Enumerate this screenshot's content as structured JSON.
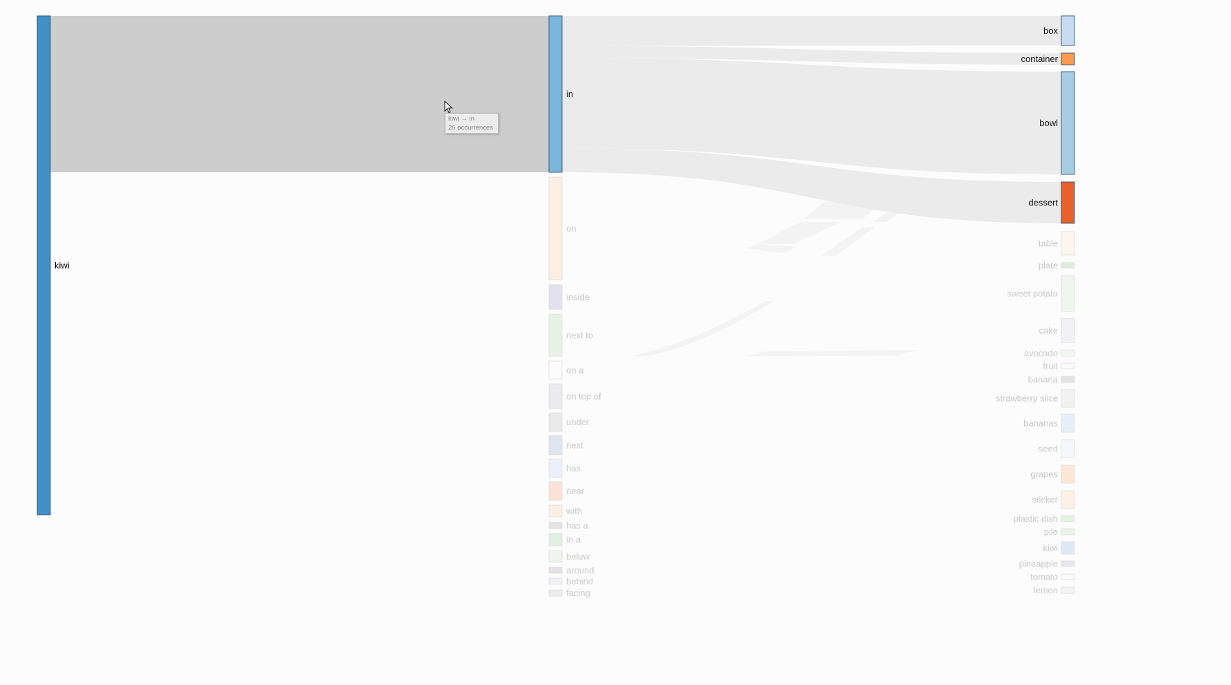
{
  "diagram": {
    "type": "sankey",
    "columns": {
      "source": [
        {
          "id": "kiwi",
          "label": "kiwi",
          "color": "#4191c6",
          "active": true
        }
      ],
      "relation": [
        {
          "id": "in",
          "label": "in",
          "color": "#7ab6dc",
          "active": true
        },
        {
          "id": "on",
          "label": "on",
          "color": "#fdeee2",
          "active": false
        },
        {
          "id": "inside",
          "label": "inside",
          "color": "#e3e1ee",
          "active": false
        },
        {
          "id": "next to",
          "label": "next to",
          "color": "#e6f2e4",
          "active": false
        },
        {
          "id": "on a",
          "label": "on a",
          "color": "#fcfcfc",
          "active": false
        },
        {
          "id": "on top of",
          "label": "on top of",
          "color": "#ebebef",
          "active": false
        },
        {
          "id": "under",
          "label": "under",
          "color": "#e9e9e9",
          "active": false
        },
        {
          "id": "next",
          "label": "next",
          "color": "#dbe6f0",
          "active": false
        },
        {
          "id": "has",
          "label": "has",
          "color": "#eaf1fa",
          "active": false
        },
        {
          "id": "near",
          "label": "near",
          "color": "#fbe2d6",
          "active": false
        },
        {
          "id": "with",
          "label": "with",
          "color": "#fdefe3",
          "active": false
        },
        {
          "id": "has a",
          "label": "has a",
          "color": "#e3e3e3",
          "active": false
        },
        {
          "id": "in a",
          "label": "in a",
          "color": "#dff0df",
          "active": false
        },
        {
          "id": "below",
          "label": "below",
          "color": "#eef6ec",
          "active": false
        },
        {
          "id": "around",
          "label": "around",
          "color": "#e1e1ec",
          "active": false
        },
        {
          "id": "behind",
          "label": "behind",
          "color": "#f1f1f4",
          "active": false
        },
        {
          "id": "facing",
          "label": "facing",
          "color": "#ececec",
          "active": false
        }
      ],
      "target": [
        {
          "id": "box",
          "label": "box",
          "color": "#c6dbef",
          "active": true
        },
        {
          "id": "container",
          "label": "container",
          "color": "#fd9a4d",
          "active": true
        },
        {
          "id": "bowl",
          "label": "bowl",
          "color": "#a8cce2",
          "active": true
        },
        {
          "id": "dessert",
          "label": "dessert",
          "color": "#e6622a",
          "active": true
        },
        {
          "id": "table",
          "label": "table",
          "color": "#fff5ec",
          "active": false
        },
        {
          "id": "plate",
          "label": "plate",
          "color": "#dcefd9",
          "active": false
        },
        {
          "id": "sweet potato",
          "label": "sweet potato",
          "color": "#eef7ec",
          "active": false
        },
        {
          "id": "cake",
          "label": "cake",
          "color": "#f1f1f6",
          "active": false
        },
        {
          "id": "avocado",
          "label": "avocado",
          "color": "#f3f7f1",
          "active": false
        },
        {
          "id": "fruit",
          "label": "fruit",
          "color": "#fafafa",
          "active": false
        },
        {
          "id": "banana",
          "label": "banana",
          "color": "#e3e3e3",
          "active": false
        },
        {
          "id": "strawberry slice",
          "label": "strawberry slice",
          "color": "#f2f2f2",
          "active": false
        },
        {
          "id": "bananas",
          "label": "bananas",
          "color": "#e6eff8",
          "active": false
        },
        {
          "id": "seed",
          "label": "seed",
          "color": "#f4f8fc",
          "active": false
        },
        {
          "id": "grapes",
          "label": "grapes",
          "color": "#fde8d8",
          "active": false
        },
        {
          "id": "sticker",
          "label": "sticker",
          "color": "#fdf1e5",
          "active": false
        },
        {
          "id": "plastic dish",
          "label": "plastic dish",
          "color": "#e4f2e2",
          "active": false
        },
        {
          "id": "pile",
          "label": "pile",
          "color": "#eaf5e8",
          "active": false
        },
        {
          "id": "kiwi-target",
          "label": "kiwi",
          "color": "#dde9f5",
          "active": false
        },
        {
          "id": "pineapple",
          "label": "pineapple",
          "color": "#e6e6f1",
          "active": false
        },
        {
          "id": "tomato",
          "label": "tomato",
          "color": "#fafafa",
          "active": false
        },
        {
          "id": "lemon",
          "label": "lemon",
          "color": "#f3f3f3",
          "active": false
        }
      ]
    },
    "links_active": [
      {
        "source": "kiwi",
        "target": "in",
        "value": 26
      },
      {
        "source": "in",
        "target": "box",
        "value": 5
      },
      {
        "source": "in",
        "target": "container",
        "value": 2
      },
      {
        "source": "in",
        "target": "bowl",
        "value": 15
      },
      {
        "source": "in",
        "target": "dessert",
        "value": 4
      }
    ],
    "tooltip": {
      "line1": "kiwi → in",
      "line2": "26 occurrences"
    },
    "colors": {
      "background": "#fcfcfc",
      "highlight_link": "#cdcdcd",
      "active_link": "#ebebeb",
      "faint_link": "#f3f3f3",
      "active_label": "#111111",
      "faded_label": "#c7c7c7"
    }
  }
}
